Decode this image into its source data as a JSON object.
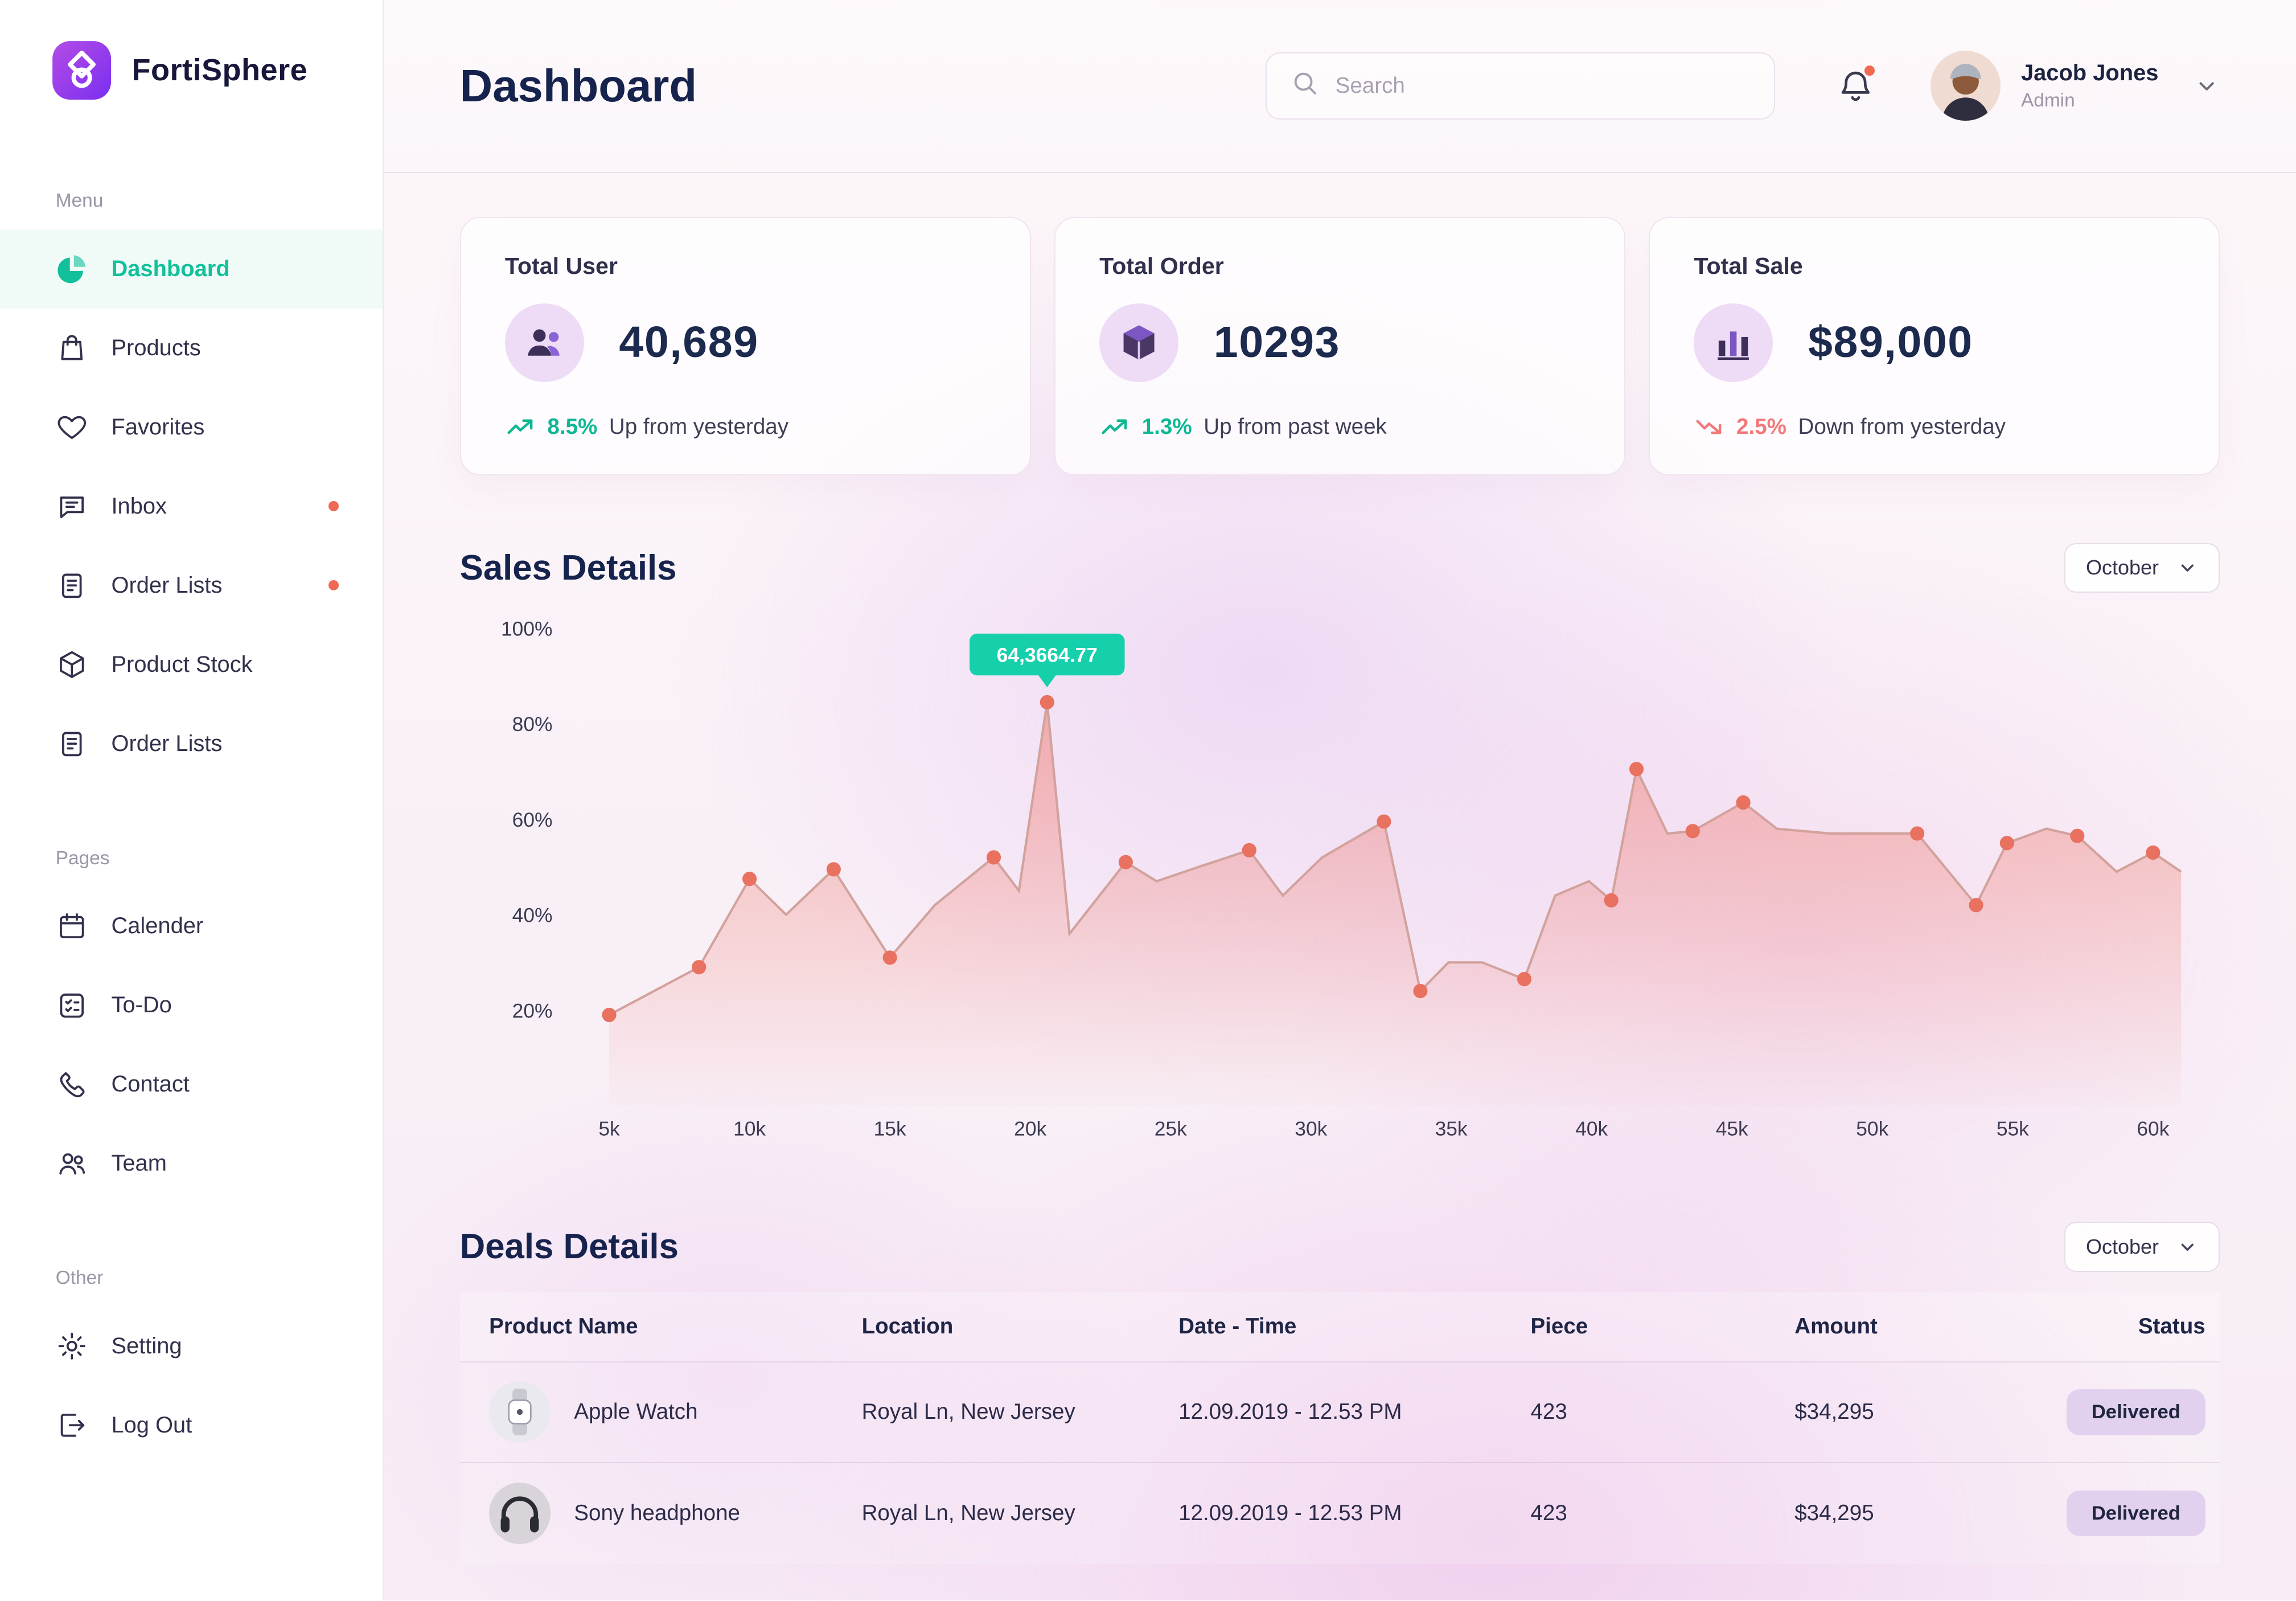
{
  "brand": {
    "name": "FortiSphere"
  },
  "colors": {
    "brand_purple": "#8a3ff0",
    "active_teal": "#13c09c",
    "trend_up": "#0fb894",
    "trend_down": "#f2797b",
    "alert_dot": "#ee6a55",
    "status_pill_bg": "#e1d1ee",
    "navy_text": "#15234d"
  },
  "header": {
    "title": "Dashboard",
    "search_placeholder": "Search",
    "user": {
      "name": "Jacob Jones",
      "role": "Admin"
    }
  },
  "sidebar": {
    "sections": [
      {
        "label": "Menu",
        "items": [
          {
            "label": "Dashboard",
            "icon": "pie-chart-icon",
            "active": true
          },
          {
            "label": "Products",
            "icon": "bag-icon"
          },
          {
            "label": "Favorites",
            "icon": "heart-icon"
          },
          {
            "label": "Inbox",
            "icon": "chat-icon",
            "dot": true
          },
          {
            "label": "Order Lists",
            "icon": "clipboard-icon",
            "dot": true
          },
          {
            "label": "Product Stock",
            "icon": "cube-icon"
          },
          {
            "label": "Order Lists",
            "icon": "clipboard-icon"
          }
        ]
      },
      {
        "label": "Pages",
        "items": [
          {
            "label": "Calender",
            "icon": "calendar-icon"
          },
          {
            "label": "To-Do",
            "icon": "todo-icon"
          },
          {
            "label": "Contact",
            "icon": "phone-icon"
          },
          {
            "label": "Team",
            "icon": "team-icon"
          }
        ]
      },
      {
        "label": "Other",
        "items": [
          {
            "label": "Setting",
            "icon": "gear-icon"
          },
          {
            "label": "Log Out",
            "icon": "logout-icon"
          }
        ]
      }
    ]
  },
  "stats": [
    {
      "title": "Total User",
      "icon": "users-icon",
      "value": "40,689",
      "trend": "8.5%",
      "trend_dir": "up",
      "trend_text": "Up from yesterday"
    },
    {
      "title": "Total Order",
      "icon": "package-icon",
      "value": "10293",
      "trend": "1.3%",
      "trend_dir": "up",
      "trend_text": "Up from past week"
    },
    {
      "title": "Total Sale",
      "icon": "barchart-icon",
      "value": "$89,000",
      "trend": "2.5%",
      "trend_dir": "down",
      "trend_text": "Down from yesterday"
    }
  ],
  "sales_section": {
    "title": "Sales Details",
    "period": "October"
  },
  "chart_data": {
    "type": "area",
    "title": "Sales Details",
    "xlabel": "",
    "ylabel": "",
    "xlim": [
      5,
      61
    ],
    "ylim": [
      0,
      100
    ],
    "x_ticks": [
      "5k",
      "10k",
      "15k",
      "20k",
      "25k",
      "30k",
      "35k",
      "40k",
      "45k",
      "50k",
      "55k",
      "60k"
    ],
    "y_ticks": [
      "20%",
      "40%",
      "60%",
      "80%",
      "100%"
    ],
    "tooltip": {
      "x": 20.6,
      "y": 84.5,
      "label": "64,3664.77"
    },
    "points": [
      [
        5,
        19,
        1
      ],
      [
        8.2,
        29,
        1
      ],
      [
        10,
        47.5,
        1
      ],
      [
        11.3,
        40,
        0
      ],
      [
        13,
        49.5,
        1
      ],
      [
        15,
        31,
        1
      ],
      [
        16.6,
        42,
        0
      ],
      [
        18.7,
        52,
        1
      ],
      [
        19.6,
        45,
        0
      ],
      [
        20.6,
        84.5,
        1
      ],
      [
        21.4,
        36,
        0
      ],
      [
        23.4,
        51,
        1
      ],
      [
        24.5,
        47,
        0
      ],
      [
        26,
        50,
        0
      ],
      [
        27.8,
        53.5,
        1
      ],
      [
        29,
        44,
        0
      ],
      [
        30.4,
        52,
        0
      ],
      [
        32.6,
        59.5,
        1
      ],
      [
        33.9,
        24,
        1
      ],
      [
        34.9,
        30,
        0
      ],
      [
        36.1,
        30,
        0
      ],
      [
        37.6,
        26.5,
        1
      ],
      [
        38.7,
        44,
        0
      ],
      [
        39.9,
        47,
        0
      ],
      [
        40.7,
        43,
        1
      ],
      [
        41.6,
        70.5,
        1
      ],
      [
        42.7,
        57,
        0
      ],
      [
        43.6,
        57.5,
        1
      ],
      [
        45.4,
        63.5,
        1
      ],
      [
        46.6,
        58,
        0
      ],
      [
        48.5,
        57,
        0
      ],
      [
        51.6,
        57,
        1
      ],
      [
        53.7,
        42,
        1
      ],
      [
        54.8,
        55,
        1
      ],
      [
        56.2,
        58,
        0
      ],
      [
        57.3,
        56.5,
        1
      ],
      [
        58.7,
        49,
        0
      ],
      [
        60,
        53,
        1
      ],
      [
        61,
        49,
        0
      ]
    ],
    "line_color": "#d2a29d",
    "dot_color": "#e8715f",
    "fill_from": "rgba(238,115,100,0.50)",
    "fill_to": "rgba(238,115,100,0.02)",
    "tooltip_color": "#16d0ac",
    "grid": "off",
    "legend": "none"
  },
  "deals_section": {
    "title": "Deals Details",
    "period": "October",
    "columns": [
      "Product Name",
      "Location",
      "Date - Time",
      "Piece",
      "Amount",
      "Status"
    ],
    "rows": [
      {
        "product": "Apple Watch",
        "thumb": "apple-watch-thumb",
        "location": "Royal Ln, New Jersey",
        "datetime": "12.09.2019 - 12.53 PM",
        "piece": "423",
        "amount": "$34,295",
        "status": "Delivered"
      },
      {
        "product": "Sony headphone",
        "thumb": "sony-headphone-thumb",
        "location": "Royal Ln, New Jersey",
        "datetime": "12.09.2019 - 12.53 PM",
        "piece": "423",
        "amount": "$34,295",
        "status": "Delivered"
      }
    ]
  }
}
